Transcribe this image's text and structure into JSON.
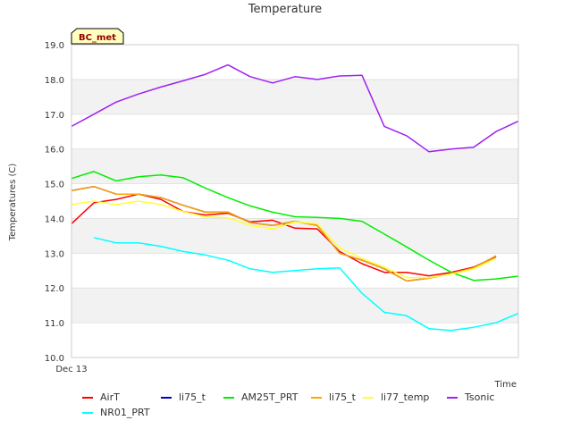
{
  "chart_data": {
    "type": "line",
    "title": "Temperature",
    "xlabel": "Time",
    "ylabel": "Temperatures (C)",
    "site_badge": "BC_met",
    "ylim": [
      10.0,
      19.0
    ],
    "yticks": [
      "10.0",
      "11.0",
      "12.0",
      "13.0",
      "14.0",
      "15.0",
      "16.0",
      "17.0",
      "18.0",
      "19.0"
    ],
    "x_tick_label": "Dec 13",
    "grid": true,
    "legend_position": "bottom",
    "x": [
      0,
      1,
      2,
      3,
      4,
      5,
      6,
      7,
      8,
      9,
      10,
      11,
      12,
      13,
      14,
      15,
      16,
      17,
      18,
      19,
      20
    ],
    "series": [
      {
        "name": "AirT",
        "color": "#ff0000",
        "values": [
          13.85,
          14.45,
          14.55,
          14.7,
          14.55,
          14.2,
          14.1,
          14.15,
          13.9,
          13.95,
          13.72,
          13.7,
          13.05,
          12.7,
          12.45,
          12.45,
          12.35,
          12.45,
          12.6,
          12.9,
          null
        ]
      },
      {
        "name": "NR01_PRT",
        "color": "#00ffff",
        "values": [
          null,
          13.45,
          13.3,
          13.3,
          13.2,
          13.05,
          12.95,
          12.8,
          12.55,
          12.45,
          12.5,
          12.55,
          12.58,
          11.85,
          11.3,
          11.2,
          10.83,
          10.78,
          10.87,
          11.0,
          11.27
        ]
      },
      {
        "name": "li75_t",
        "color": "#0000cc",
        "values": [
          14.8,
          14.92,
          14.7,
          14.7,
          14.6,
          14.38,
          14.18,
          14.18,
          13.88,
          13.8,
          13.92,
          13.8,
          13.0,
          12.8,
          12.55,
          12.2,
          12.28,
          12.42,
          12.58,
          12.92,
          null
        ]
      },
      {
        "name": "AM25T_PRT",
        "color": "#00ee00",
        "values": [
          15.15,
          15.35,
          15.08,
          15.2,
          15.25,
          15.17,
          14.87,
          14.6,
          14.36,
          14.18,
          14.05,
          14.03,
          14.0,
          13.92,
          13.55,
          13.18,
          12.8,
          12.45,
          12.22,
          12.26,
          12.34
        ]
      },
      {
        "name": "li75_t",
        "color": "#ffa500",
        "values": [
          14.8,
          14.92,
          14.7,
          14.7,
          14.6,
          14.38,
          14.18,
          14.18,
          13.88,
          13.8,
          13.92,
          13.8,
          13.0,
          12.8,
          12.55,
          12.2,
          12.28,
          12.42,
          12.58,
          12.92,
          null
        ]
      },
      {
        "name": "li77_temp",
        "color": "#ffff33",
        "values": [
          14.4,
          14.5,
          14.4,
          14.5,
          14.4,
          14.2,
          14.05,
          14.02,
          13.8,
          13.7,
          13.9,
          13.85,
          13.15,
          12.85,
          12.6,
          12.3,
          12.3,
          12.4,
          12.55,
          12.85,
          null
        ]
      },
      {
        "name": "Tsonic",
        "color": "#a020f0",
        "values": [
          16.65,
          17.0,
          17.35,
          17.58,
          17.78,
          17.96,
          18.15,
          18.42,
          18.08,
          17.9,
          18.08,
          18.0,
          18.1,
          18.12,
          16.65,
          16.38,
          15.92,
          16.0,
          16.05,
          16.5,
          16.8
        ]
      }
    ]
  }
}
